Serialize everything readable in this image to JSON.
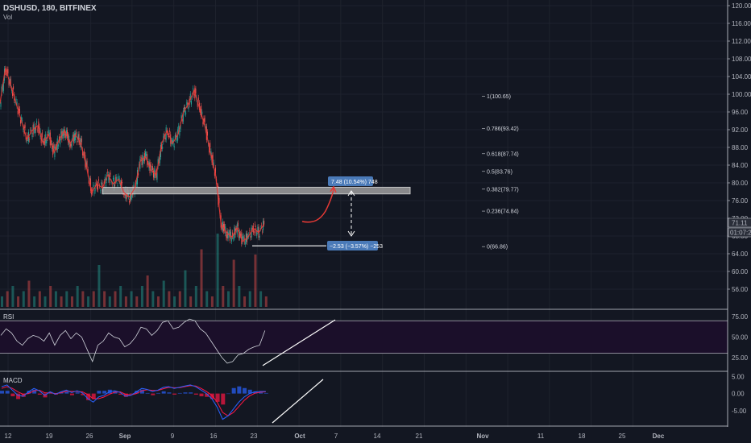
{
  "header": {
    "symbol": "DSHUSD, 180, BITFINEX",
    "vol_label": "Vol"
  },
  "panes": {
    "rsi_label": "RSI",
    "macd_label": "MACD"
  },
  "colors": {
    "background": "#131722",
    "up": "#26a69a",
    "down": "#ef5350",
    "price_line": "#e53935",
    "level_zone": "#9e9e9e",
    "rsi_fill": "#1b0f2a",
    "rsi_line": "#d1d4dc",
    "macd_line": "#2962ff",
    "signal_line": "#ff1744",
    "annotation_box": "#4a7ab8",
    "trendline": "#ffffff"
  },
  "chart_data": [
    {
      "type": "line",
      "title": "DSHUSD, 180, BITFINEX",
      "x_ticks": [
        "12",
        "19",
        "26",
        "Sep",
        "9",
        "16",
        "23",
        "Oct",
        "7",
        "14",
        "21",
        "Nov",
        "11",
        "18",
        "25",
        "Dec"
      ],
      "y_ticks": [
        "120.00",
        "116.00",
        "112.00",
        "108.00",
        "104.00",
        "100.00",
        "96.00",
        "92.00",
        "88.00",
        "84.00",
        "80.00",
        "76.00",
        "72.00",
        "68.00",
        "64.00",
        "60.00",
        "56.00"
      ],
      "ylim": [
        53.5,
        121
      ],
      "series": [
        {
          "values": [
            [
              12,
              99
            ],
            [
              13,
              107
            ],
            [
              14,
              103
            ],
            [
              15,
              99
            ],
            [
              16,
              95
            ],
            [
              17,
              91
            ],
            [
              18,
              93
            ],
            [
              19,
              94
            ],
            [
              20,
              90
            ],
            [
              21,
              92
            ],
            [
              22,
              88
            ],
            [
              23,
              91
            ],
            [
              24,
              93
            ],
            [
              25,
              90
            ],
            [
              26,
              92
            ],
            [
              27,
              90
            ],
            [
              28,
              85
            ],
            [
              29,
              79
            ],
            [
              30,
              81
            ],
            [
              31,
              80
            ],
            [
              32,
              83
            ],
            [
              33,
              81
            ],
            [
              34,
              82
            ],
            [
              35,
              79
            ],
            [
              36,
              78
            ],
            [
              37,
              80
            ],
            [
              38,
              86
            ],
            [
              39,
              87
            ],
            [
              40,
              84
            ],
            [
              41,
              83
            ],
            [
              42,
              90
            ],
            [
              43,
              93
            ],
            [
              44,
              90
            ],
            [
              45,
              92
            ],
            [
              46,
              97
            ],
            [
              47,
              99
            ],
            [
              48,
              102
            ],
            [
              49,
              98
            ],
            [
              50,
              94
            ],
            [
              51,
              88
            ],
            [
              52,
              83
            ],
            [
              53,
              72
            ],
            [
              54,
              70
            ],
            [
              55,
              69
            ],
            [
              56,
              71
            ],
            [
              57,
              68
            ],
            [
              58,
              69
            ],
            [
              59,
              71
            ],
            [
              60,
              70
            ],
            [
              61,
              72
            ]
          ]
        }
      ],
      "projection": {
        "values": [
          [
            61,
            72
          ],
          [
            62.5,
            71.5
          ],
          [
            64,
            72.5
          ],
          [
            65.6,
            79.8
          ]
        ]
      },
      "level_zone": {
        "y_low": 78.7,
        "y_high": 80.2,
        "x_from": 21,
        "x_to": 82
      },
      "support_line": {
        "y": 66.86,
        "x_from": 50,
        "x_to": 64.5
      },
      "fibonacci": [
        {
          "label": "1(100.65)",
          "y": 100.65
        },
        {
          "label": "0.786(93.42)",
          "y": 93.42
        },
        {
          "label": "0.618(87.74)",
          "y": 87.74
        },
        {
          "label": "0.5(83.76)",
          "y": 83.76
        },
        {
          "label": "0.382(79.77)",
          "y": 79.77
        },
        {
          "label": "0.236(74.84)",
          "y": 74.84
        },
        {
          "label": "0(66.86)",
          "y": 66.86
        }
      ],
      "annotations": [
        {
          "text": "7.48 (10.54%) 748",
          "x": 66,
          "y": 81.6
        },
        {
          "text": "−2.53 (−3.57%) −253",
          "x": 65,
          "y": 66.2
        }
      ],
      "current_price": "71.11",
      "countdown": "01:07:28",
      "volume_values": [
        2,
        3,
        4,
        2,
        3,
        5,
        2,
        3,
        2,
        4,
        3,
        2,
        3,
        2,
        4,
        3,
        2,
        3,
        8,
        3,
        2,
        3,
        4,
        2,
        3,
        2,
        4,
        6,
        3,
        2,
        5,
        3,
        2,
        3,
        7,
        2,
        4,
        11,
        3,
        2,
        14,
        4,
        3,
        9,
        4,
        2,
        3,
        10,
        3,
        2
      ]
    },
    {
      "type": "line",
      "title": "RSI",
      "y_ticks": [
        "75.00",
        "50.00",
        "25.00"
      ],
      "ylim": [
        10,
        82
      ],
      "upper_band": 70,
      "lower_band": 30,
      "series": [
        {
          "values": [
            52,
            60,
            55,
            45,
            40,
            48,
            52,
            50,
            45,
            55,
            40,
            52,
            58,
            48,
            55,
            50,
            35,
            20,
            40,
            45,
            55,
            50,
            48,
            38,
            42,
            50,
            62,
            60,
            52,
            58,
            68,
            70,
            60,
            62,
            68,
            72,
            70,
            60,
            55,
            45,
            35,
            25,
            18,
            20,
            28,
            30,
            35,
            38,
            40,
            58
          ]
        }
      ],
      "trendline": {
        "from": [
          48.5,
          18
        ],
        "to": [
          71,
          58
        ]
      }
    },
    {
      "type": "line",
      "title": "MACD",
      "y_ticks": [
        "5.00",
        "0.00",
        "-5.00"
      ],
      "ylim": [
        -9,
        6
      ],
      "series": [
        {
          "values": [
            2.0,
            2.5,
            1.0,
            -0.5,
            -0.8,
            0.5,
            1.5,
            0.8,
            -0.5,
            0.5,
            -0.2,
            0.5,
            1.0,
            0.3,
            0.8,
            0.2,
            -1.5,
            -2.5,
            -1.0,
            -0.5,
            0.5,
            0.8,
            0.3,
            -0.8,
            -0.5,
            0.5,
            1.5,
            1.2,
            0.6,
            1.0,
            1.8,
            2.0,
            1.5,
            1.8,
            2.2,
            2.5,
            2.0,
            1.0,
            0.0,
            -1.5,
            -4.0,
            -7.5,
            -6.5,
            -4.5,
            -2.5,
            -1.0,
            0.0,
            0.5,
            0.6,
            0.6
          ]
        },
        {
          "values": [
            1.5,
            2.0,
            1.5,
            0.5,
            -0.2,
            0.0,
            0.8,
            1.0,
            0.2,
            0.2,
            0.0,
            0.2,
            0.7,
            0.6,
            0.6,
            0.5,
            -0.3,
            -1.5,
            -1.5,
            -1.0,
            -0.2,
            0.4,
            0.5,
            -0.2,
            -0.4,
            0.0,
            0.8,
            1.1,
            0.9,
            0.9,
            1.4,
            1.8,
            1.7,
            1.7,
            2.0,
            2.3,
            2.2,
            1.5,
            0.6,
            -0.5,
            -2.5,
            -5.5,
            -6.5,
            -5.5,
            -3.8,
            -2.0,
            -0.7,
            0.1,
            0.4,
            0.5
          ]
        }
      ],
      "trendline": {
        "from": [
          48.5,
          -7.5
        ],
        "to": [
          71,
          3.5
        ]
      }
    }
  ]
}
